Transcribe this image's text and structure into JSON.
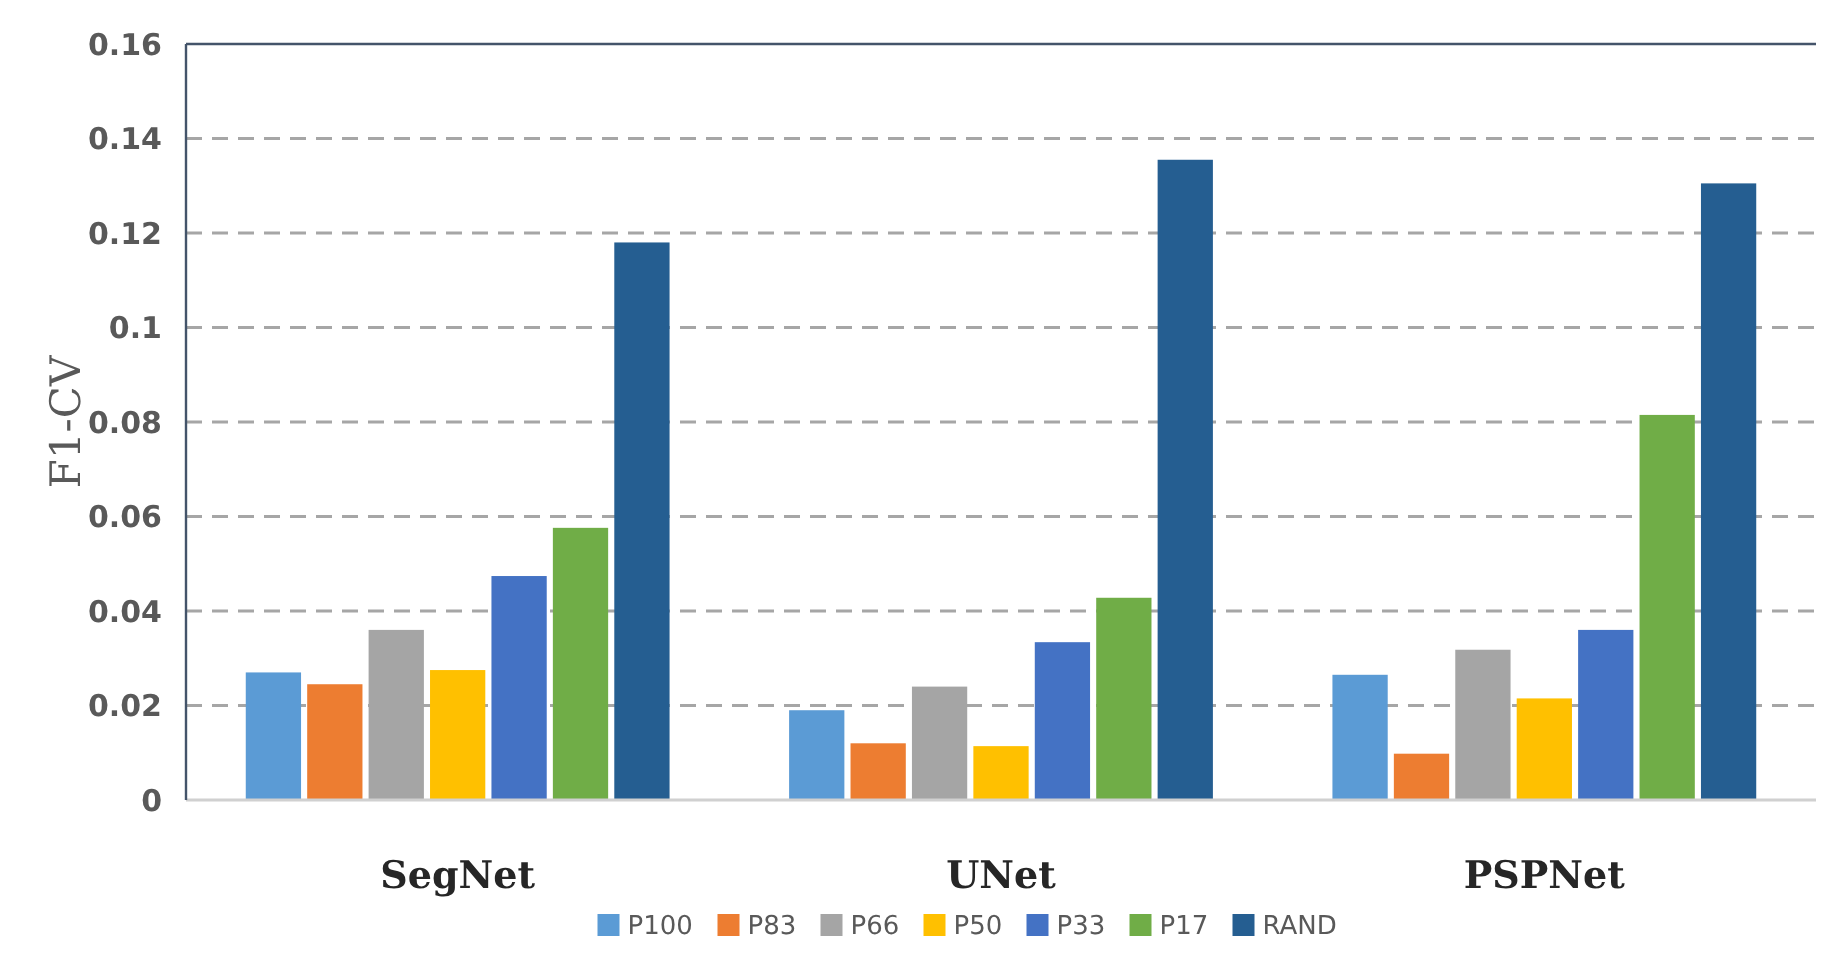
{
  "chart_data": {
    "type": "bar",
    "ylabel": "F1-CV",
    "categories": [
      "SegNet",
      "UNet",
      "PSPNet"
    ],
    "series": [
      {
        "name": "P100",
        "color": "#5b9bd5",
        "values": [
          0.027,
          0.019,
          0.0265
        ]
      },
      {
        "name": "P83",
        "color": "#ed7d31",
        "values": [
          0.0245,
          0.012,
          0.0098
        ]
      },
      {
        "name": "P66",
        "color": "#a5a5a5",
        "values": [
          0.036,
          0.024,
          0.0318
        ]
      },
      {
        "name": "P50",
        "color": "#ffc000",
        "values": [
          0.0275,
          0.0114,
          0.0215
        ]
      },
      {
        "name": "P33",
        "color": "#4472c4",
        "values": [
          0.0474,
          0.0334,
          0.036
        ]
      },
      {
        "name": "P17",
        "color": "#70ad47",
        "values": [
          0.0576,
          0.0428,
          0.0815
        ]
      },
      {
        "name": "RAND",
        "color": "#255e91",
        "values": [
          0.118,
          0.1355,
          0.1305
        ]
      }
    ],
    "ylim": [
      0,
      0.16
    ],
    "yticks": [
      0,
      0.02,
      0.04,
      0.06,
      0.08,
      0.1,
      0.12,
      0.14,
      0.16
    ],
    "grid": "y",
    "legend": "bottom"
  }
}
